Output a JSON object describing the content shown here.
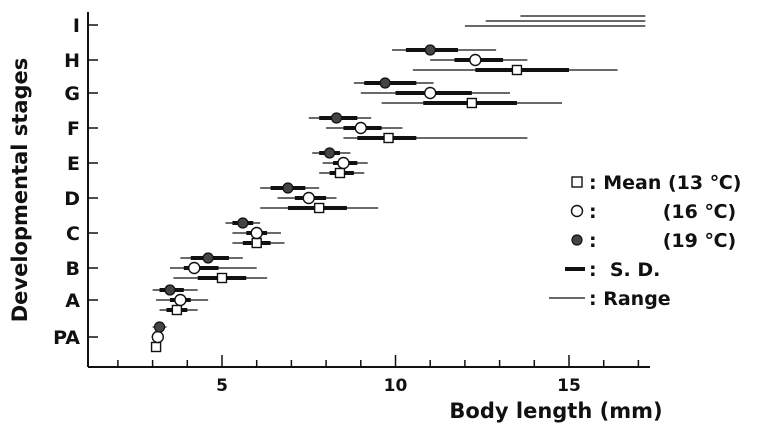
{
  "chart_data": {
    "type": "scatter",
    "xlabel": "Body length (mm)",
    "ylabel": "Developmental stages",
    "xlim": [
      1,
      17.2
    ],
    "x_ticks": [
      5,
      10,
      15
    ],
    "stages": [
      "PA",
      "A",
      "B",
      "C",
      "D",
      "E",
      "F",
      "G",
      "H",
      "I"
    ],
    "series": [
      {
        "name": "Mean (13 ℃)",
        "marker": "square",
        "points": [
          {
            "stage": "PA",
            "mean": 3.1,
            "sd": [
              3.0,
              3.2
            ],
            "range": [
              3.0,
              3.2
            ]
          },
          {
            "stage": "A",
            "mean": 3.7,
            "sd": [
              3.4,
              4.0
            ],
            "range": [
              3.2,
              4.3
            ]
          },
          {
            "stage": "B",
            "mean": 5.0,
            "sd": [
              4.3,
              5.7
            ],
            "range": [
              3.6,
              6.3
            ]
          },
          {
            "stage": "C",
            "mean": 6.0,
            "sd": [
              5.6,
              6.4
            ],
            "range": [
              5.3,
              6.8
            ]
          },
          {
            "stage": "D",
            "mean": 7.8,
            "sd": [
              6.9,
              8.6
            ],
            "range": [
              6.1,
              9.5
            ]
          },
          {
            "stage": "E",
            "mean": 8.4,
            "sd": [
              8.1,
              8.8
            ],
            "range": [
              7.8,
              9.1
            ]
          },
          {
            "stage": "F",
            "mean": 9.8,
            "sd": [
              8.9,
              10.6
            ],
            "range": [
              8.5,
              13.8
            ]
          },
          {
            "stage": "G",
            "mean": 12.2,
            "sd": [
              10.8,
              13.5
            ],
            "range": [
              9.6,
              14.8
            ]
          },
          {
            "stage": "H",
            "mean": 13.5,
            "sd": [
              12.3,
              15.0
            ],
            "range": [
              10.5,
              16.4
            ]
          },
          {
            "stage": "I",
            "mean": null,
            "sd": null,
            "range": [
              13.6,
              17.2
            ]
          }
        ]
      },
      {
        "name": "(16 ℃)",
        "marker": "circle",
        "points": [
          {
            "stage": "PA",
            "mean": 3.15,
            "sd": [
              3.0,
              3.3
            ],
            "range": [
              3.0,
              3.3
            ]
          },
          {
            "stage": "A",
            "mean": 3.8,
            "sd": [
              3.5,
              4.1
            ],
            "range": [
              3.1,
              4.6
            ]
          },
          {
            "stage": "B",
            "mean": 4.2,
            "sd": [
              3.9,
              4.9
            ],
            "range": [
              3.5,
              6.0
            ]
          },
          {
            "stage": "C",
            "mean": 6.0,
            "sd": [
              5.7,
              6.3
            ],
            "range": [
              5.3,
              6.7
            ]
          },
          {
            "stage": "D",
            "mean": 7.5,
            "sd": [
              7.1,
              8.0
            ],
            "range": [
              6.6,
              8.3
            ]
          },
          {
            "stage": "E",
            "mean": 8.5,
            "sd": [
              8.2,
              8.9
            ],
            "range": [
              7.9,
              9.2
            ]
          },
          {
            "stage": "F",
            "mean": 9.0,
            "sd": [
              8.5,
              9.6
            ],
            "range": [
              8.0,
              10.2
            ]
          },
          {
            "stage": "G",
            "mean": 11.0,
            "sd": [
              10.0,
              12.2
            ],
            "range": [
              9.0,
              13.3
            ]
          },
          {
            "stage": "H",
            "mean": 12.3,
            "sd": [
              11.7,
              13.1
            ],
            "range": [
              11.0,
              13.8
            ]
          },
          {
            "stage": "I",
            "mean": null,
            "sd": null,
            "range": [
              12.6,
              17.2
            ]
          }
        ]
      },
      {
        "name": "(19 ℃)",
        "marker": "dark-circle",
        "points": [
          {
            "stage": "PA",
            "mean": 3.2,
            "sd": [
              3.1,
              3.35
            ],
            "range": [
              3.0,
              3.4
            ]
          },
          {
            "stage": "A",
            "mean": 3.5,
            "sd": [
              3.2,
              3.9
            ],
            "range": [
              3.0,
              4.3
            ]
          },
          {
            "stage": "B",
            "mean": 4.6,
            "sd": [
              4.1,
              5.2
            ],
            "range": [
              3.8,
              5.6
            ]
          },
          {
            "stage": "C",
            "mean": 5.6,
            "sd": [
              5.3,
              5.9
            ],
            "range": [
              5.1,
              6.1
            ]
          },
          {
            "stage": "D",
            "mean": 6.9,
            "sd": [
              6.4,
              7.4
            ],
            "range": [
              6.1,
              7.8
            ]
          },
          {
            "stage": "E",
            "mean": 8.1,
            "sd": [
              7.8,
              8.4
            ],
            "range": [
              7.6,
              8.7
            ]
          },
          {
            "stage": "F",
            "mean": 8.3,
            "sd": [
              7.8,
              8.9
            ],
            "range": [
              7.5,
              9.3
            ]
          },
          {
            "stage": "G",
            "mean": 9.7,
            "sd": [
              9.1,
              10.6
            ],
            "range": [
              8.8,
              11.1
            ]
          },
          {
            "stage": "H",
            "mean": 11.0,
            "sd": [
              10.3,
              11.8
            ],
            "range": [
              9.9,
              12.9
            ]
          },
          {
            "stage": "I",
            "mean": null,
            "sd": null,
            "range": [
              12.0,
              17.2
            ]
          }
        ]
      }
    ],
    "legend": {
      "position": "right",
      "items": [
        {
          "symbol": "square",
          "text": ": Mean (13 ℃)"
        },
        {
          "symbol": "circle",
          "text": ":          (16 ℃)"
        },
        {
          "symbol": "dark-circle",
          "text": ":          (19 ℃)"
        },
        {
          "symbol": "sd-bar",
          "text": ":  S. D."
        },
        {
          "symbol": "range-line",
          "text": ": Range"
        }
      ]
    },
    "grid": false
  }
}
